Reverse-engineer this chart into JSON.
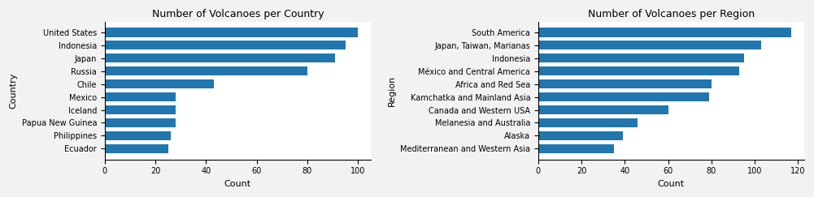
{
  "left_title": "Number of Volcanoes per Country",
  "left_ylabel": "Country",
  "left_xlabel": "Count",
  "left_categories": [
    "Ecuador",
    "Philippines",
    "Papua New Guinea",
    "Iceland",
    "Mexico",
    "Chile",
    "Russia",
    "Japan",
    "Indonesia",
    "United States"
  ],
  "left_values": [
    25,
    26,
    28,
    28,
    28,
    43,
    80,
    91,
    95,
    100
  ],
  "right_title": "Number of Volcanoes per Region",
  "right_ylabel": "Region",
  "right_xlabel": "Count",
  "right_categories": [
    "Mediterranean and Western Asia",
    "Alaska",
    "Melanesia and Australia",
    "Canada and Western USA",
    "Kamchatka and Mainland Asia",
    "Africa and Red Sea",
    "México and Central America",
    "Indonesia",
    "Japan, Taiwan, Marianas",
    "South America"
  ],
  "right_values": [
    35,
    39,
    46,
    60,
    79,
    80,
    93,
    95,
    103,
    117
  ],
  "bar_color": "#2176ae",
  "axes_bg_color": "#ffffff",
  "fig_bg_color": "#f2f2f2",
  "title_fontsize": 9,
  "label_fontsize": 8,
  "tick_fontsize": 7
}
